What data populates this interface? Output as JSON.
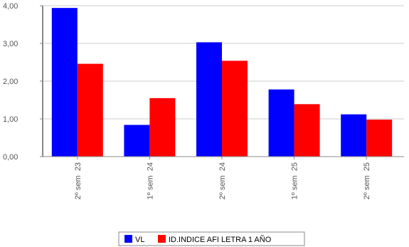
{
  "chart_data": {
    "type": "bar",
    "categories": [
      "2º sem  23",
      "1º sem  24",
      "2º sem  24",
      "1º sem  25",
      "2º sem  25"
    ],
    "series": [
      {
        "name": "VL",
        "color": "#0000ff",
        "values": [
          3.94,
          0.84,
          3.03,
          1.78,
          1.12
        ]
      },
      {
        "name": "ID.INDICE AFI LETRA 1 AÑO",
        "color": "#ff0000",
        "values": [
          2.46,
          1.55,
          2.54,
          1.39,
          0.98
        ]
      }
    ],
    "ylim": [
      0,
      4
    ],
    "yticks": [
      "0,00",
      "1,00",
      "2,00",
      "3,00",
      "4,00"
    ],
    "grid": true,
    "legend_position": "bottom-center"
  }
}
